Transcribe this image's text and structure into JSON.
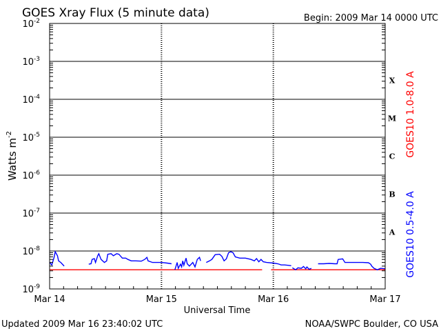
{
  "chart_data": {
    "type": "line",
    "title": "GOES Xray Flux (5 minute data)",
    "begin_label": "Begin:  2009 Mar 14 0000 UTC",
    "xlabel": "Universal Time",
    "ylabel": "Watts m",
    "ylabel_sup": "-2",
    "y_scale": "log",
    "ylim": [
      1e-09,
      0.01
    ],
    "y_ticks": [
      {
        "base": "10",
        "exp": "-9",
        "value": 1e-09
      },
      {
        "base": "10",
        "exp": "-8",
        "value": 1e-08
      },
      {
        "base": "10",
        "exp": "-7",
        "value": 1e-07
      },
      {
        "base": "10",
        "exp": "-6",
        "value": 1e-06
      },
      {
        "base": "10",
        "exp": "-5",
        "value": 1e-05
      },
      {
        "base": "10",
        "exp": "-4",
        "value": 0.0001
      },
      {
        "base": "10",
        "exp": "-3",
        "value": 0.001
      },
      {
        "base": "10",
        "exp": "-2",
        "value": 0.01
      }
    ],
    "x_ticks": [
      "Mar 14",
      "Mar 15",
      "Mar 16",
      "Mar 17"
    ],
    "flare_classes": [
      {
        "label": "A",
        "value": 3.16e-08
      },
      {
        "label": "B",
        "value": 3.16e-07
      },
      {
        "label": "C",
        "value": 3.16e-06
      },
      {
        "label": "M",
        "value": 3.16e-05
      },
      {
        "label": "X",
        "value": 0.000316
      }
    ],
    "series": [
      {
        "name": "GOES10 1.0-8.0 A",
        "color": "#ff0000",
        "segments": [
          [
            [
              0.0,
              3.2e-09
            ],
            [
              0.35,
              3.2e-09
            ],
            [
              0.7,
              3.2e-09
            ],
            [
              1.0,
              3.2e-09
            ],
            [
              1.5,
              3.2e-09
            ],
            [
              1.9,
              3.2e-09
            ]
          ],
          [
            [
              1.98,
              3.2e-09
            ],
            [
              2.5,
              3.2e-09
            ],
            [
              3.0,
              3.2e-09
            ]
          ]
        ]
      },
      {
        "name": "GOES10 0.5-4.0 A",
        "color": "#0000ff",
        "segments": [
          [
            [
              0.0,
              5e-09
            ],
            [
              0.02,
              4.3e-09
            ],
            [
              0.04,
              6.8e-09
            ],
            [
              0.05,
              9.6e-09
            ],
            [
              0.07,
              7.5e-09
            ],
            [
              0.08,
              5.5e-09
            ],
            [
              0.1,
              5e-09
            ],
            [
              0.13,
              4e-09
            ]
          ],
          [
            [
              0.35,
              4.5e-09
            ],
            [
              0.37,
              4.6e-09
            ],
            [
              0.38,
              6e-09
            ],
            [
              0.4,
              6.3e-09
            ],
            [
              0.41,
              5e-09
            ],
            [
              0.43,
              7.5e-09
            ],
            [
              0.44,
              8.5e-09
            ],
            [
              0.46,
              6e-09
            ],
            [
              0.49,
              5e-09
            ],
            [
              0.51,
              5.5e-09
            ],
            [
              0.52,
              8.2e-09
            ],
            [
              0.55,
              8.5e-09
            ],
            [
              0.57,
              7.5e-09
            ],
            [
              0.6,
              8.5e-09
            ],
            [
              0.62,
              8.2e-09
            ],
            [
              0.65,
              6.5e-09
            ],
            [
              0.68,
              6.5e-09
            ],
            [
              0.7,
              6e-09
            ],
            [
              0.73,
              5.5e-09
            ],
            [
              0.77,
              5.5e-09
            ],
            [
              0.82,
              5.4e-09
            ],
            [
              0.85,
              6e-09
            ],
            [
              0.87,
              6.8e-09
            ],
            [
              0.88,
              5.5e-09
            ],
            [
              0.92,
              5e-09
            ],
            [
              1.0,
              5e-09
            ],
            [
              1.05,
              4.8e-09
            ],
            [
              1.09,
              4.6e-09
            ]
          ],
          [
            [
              1.12,
              3.2e-09
            ],
            [
              1.14,
              5e-09
            ],
            [
              1.15,
              3.5e-09
            ],
            [
              1.17,
              4.5e-09
            ],
            [
              1.18,
              3.8e-09
            ],
            [
              1.19,
              5.5e-09
            ],
            [
              1.2,
              4.2e-09
            ],
            [
              1.22,
              6.5e-09
            ],
            [
              1.23,
              4.6e-09
            ],
            [
              1.25,
              4e-09
            ],
            [
              1.28,
              5e-09
            ],
            [
              1.3,
              3.8e-09
            ],
            [
              1.32,
              6e-09
            ],
            [
              1.34,
              6.8e-09
            ],
            [
              1.35,
              5.5e-09
            ]
          ],
          [
            [
              1.4,
              5e-09
            ],
            [
              1.43,
              5.5e-09
            ],
            [
              1.45,
              6e-09
            ],
            [
              1.48,
              8e-09
            ],
            [
              1.52,
              8.2e-09
            ],
            [
              1.54,
              7.2e-09
            ],
            [
              1.56,
              5.5e-09
            ],
            [
              1.58,
              6.2e-09
            ],
            [
              1.6,
              9e-09
            ],
            [
              1.62,
              9.6e-09
            ],
            [
              1.64,
              9e-09
            ],
            [
              1.66,
              7e-09
            ],
            [
              1.7,
              6.5e-09
            ],
            [
              1.75,
              6.5e-09
            ],
            [
              1.8,
              6e-09
            ],
            [
              1.83,
              5.5e-09
            ],
            [
              1.85,
              6.3e-09
            ],
            [
              1.87,
              5.2e-09
            ],
            [
              1.89,
              6e-09
            ],
            [
              1.91,
              5.2e-09
            ],
            [
              1.94,
              5e-09
            ],
            [
              2.0,
              4.8e-09
            ],
            [
              2.04,
              4.6e-09
            ],
            [
              2.07,
              4.3e-09
            ],
            [
              2.1,
              4.3e-09
            ],
            [
              2.13,
              4.2e-09
            ],
            [
              2.16,
              4.1e-09
            ]
          ],
          [
            [
              2.17,
              3.6e-09
            ],
            [
              2.2,
              3.2e-09
            ],
            [
              2.22,
              3.6e-09
            ],
            [
              2.25,
              3.5e-09
            ],
            [
              2.27,
              3.9e-09
            ],
            [
              2.29,
              3.4e-09
            ],
            [
              2.3,
              3.8e-09
            ],
            [
              2.32,
              3.3e-09
            ],
            [
              2.34,
              3.5e-09
            ]
          ],
          [
            [
              2.4,
              4.6e-09
            ],
            [
              2.45,
              4.6e-09
            ],
            [
              2.5,
              4.7e-09
            ],
            [
              2.55,
              4.6e-09
            ],
            [
              2.57,
              4.6e-09
            ],
            [
              2.58,
              6e-09
            ],
            [
              2.62,
              6.2e-09
            ],
            [
              2.64,
              5e-09
            ],
            [
              2.7,
              5e-09
            ],
            [
              2.8,
              5e-09
            ],
            [
              2.85,
              4.9e-09
            ],
            [
              2.87,
              4.5e-09
            ],
            [
              2.88,
              4e-09
            ],
            [
              2.9,
              3.5e-09
            ],
            [
              2.93,
              3.2e-09
            ],
            [
              2.96,
              3.5e-09
            ],
            [
              3.0,
              3.4e-09
            ]
          ]
        ]
      }
    ],
    "grid": "horizontal at decades, dashed vertical at day boundaries"
  },
  "footer": {
    "updated": "Updated 2009 Mar 16 23:40:02 UTC",
    "source": "NOAA/SWPC Boulder, CO USA"
  }
}
